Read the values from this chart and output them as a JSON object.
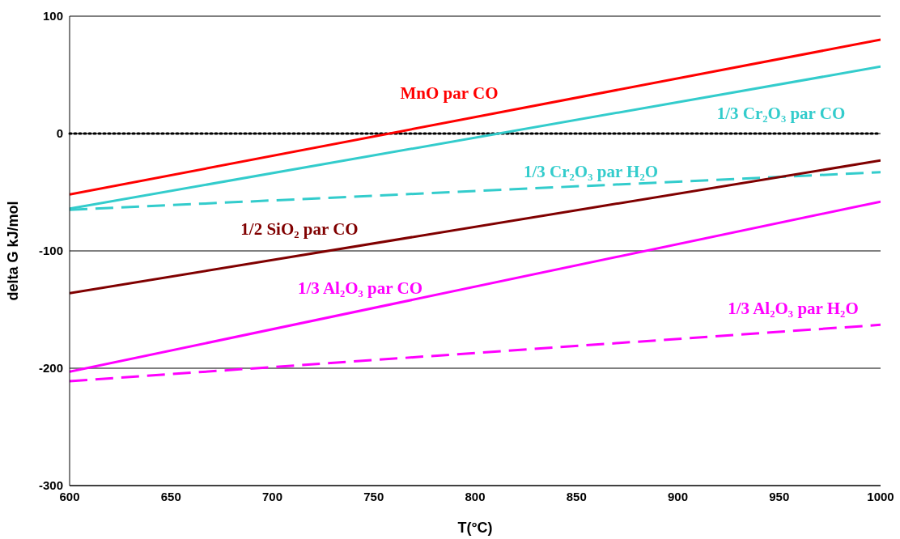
{
  "chart_data": {
    "type": "line",
    "xlabel": "T(°C)",
    "ylabel": "delta G kJ/mol",
    "x": [
      600,
      1000
    ],
    "series": [
      {
        "name": "MnO par CO",
        "color": "#ff0000",
        "values": [
          -52,
          80
        ],
        "line_style": "solid"
      },
      {
        "name": "1/3 Cr₂O₃ par CO",
        "color": "#33cccc",
        "values": [
          -64,
          57
        ],
        "line_style": "solid"
      },
      {
        "name": "1/3 Cr₂O₃ par H₂O",
        "color": "#33cccc",
        "values": [
          -65,
          -33
        ],
        "line_style": "dashed"
      },
      {
        "name": "1/2 SiO₂ par CO",
        "color": "#800000",
        "values": [
          -136,
          -23
        ],
        "line_style": "solid"
      },
      {
        "name": "1/3 Al₂O₃ par CO",
        "color": "#ff00ff",
        "values": [
          -203,
          -58
        ],
        "line_style": "solid"
      },
      {
        "name": "1/3 Al₂O₃ par H₂O",
        "color": "#ff00ff",
        "values": [
          -211,
          -163
        ],
        "line_style": "dashed"
      }
    ],
    "xlim": [
      600,
      1000
    ],
    "xticks": [
      600,
      650,
      700,
      750,
      800,
      850,
      900,
      950,
      1000
    ],
    "ylim": [
      -300,
      100
    ],
    "yticks": [
      -300,
      -200,
      -100,
      0,
      100
    ],
    "grid": "y",
    "legend": false,
    "marker": "none",
    "ref_lines": [
      {
        "axis": "y",
        "value": 0,
        "color": "#000000",
        "line_style": "dotted"
      }
    ]
  }
}
